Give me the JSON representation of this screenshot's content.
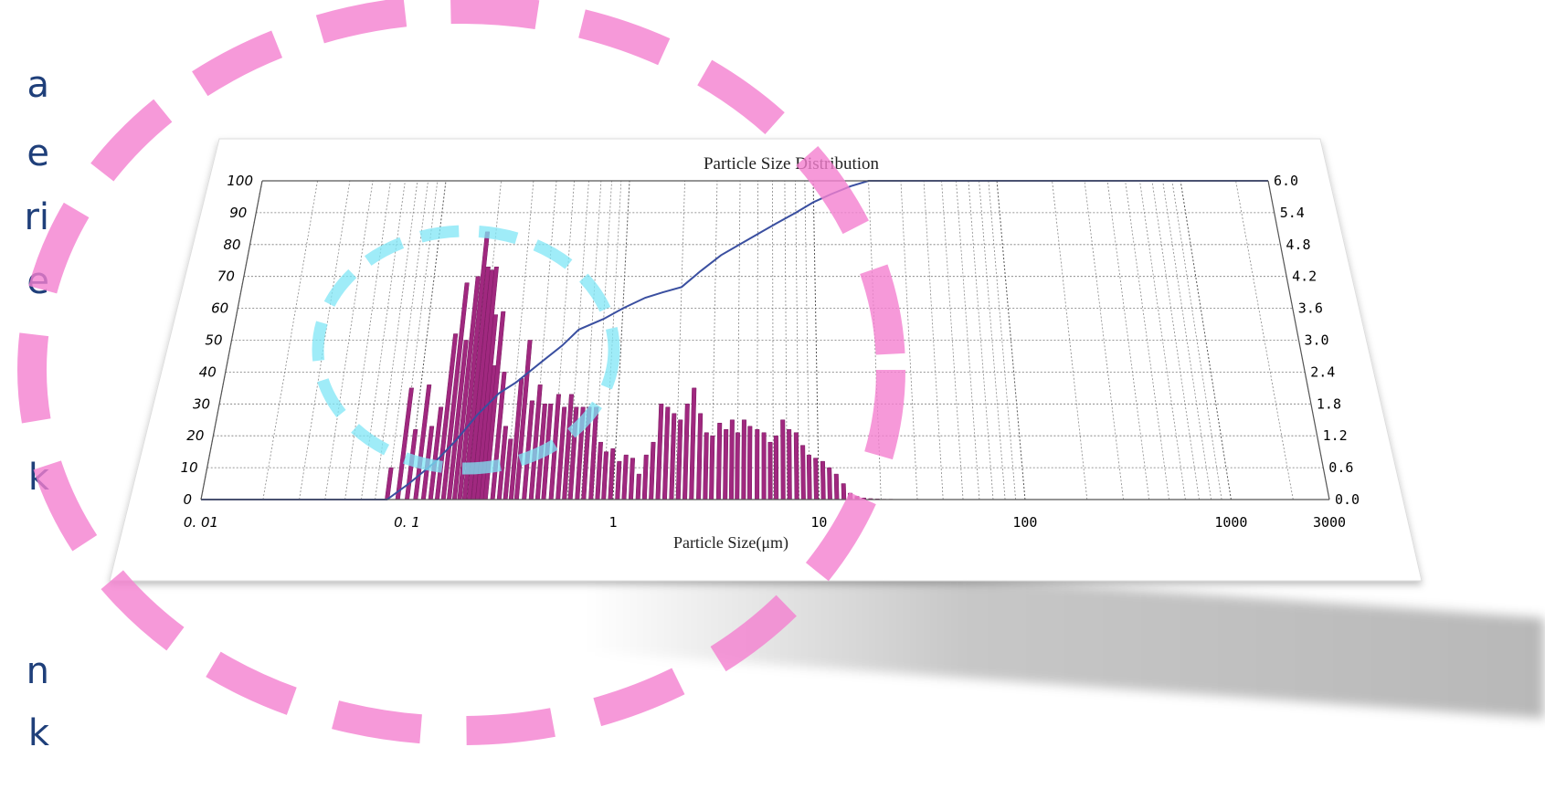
{
  "side_text": [
    "a",
    "e",
    "ri",
    "e",
    "k",
    "n",
    "k"
  ],
  "colors": {
    "bars": "#a0287f",
    "cumulative_line": "#3a4fa0",
    "pink_ring": "#f47fcf",
    "cyan_ring": "#7fe6f5"
  },
  "chart_data": {
    "type": "bar",
    "title": "Particle Size Distribution",
    "xlabel": "Particle Size(μm)",
    "ylabel": "",
    "x_scale": "log",
    "xlim": [
      0.01,
      3000
    ],
    "ylim": [
      0,
      100
    ],
    "ylim_right": [
      0,
      6
    ],
    "x_ticks": [
      "0. 01",
      "0. 1",
      "1",
      "10",
      "100",
      "1000",
      "3000"
    ],
    "x_tick_values": [
      0.01,
      0.1,
      1,
      10,
      100,
      1000,
      3000
    ],
    "y_ticks": [
      "0",
      "10",
      "20",
      "30",
      "40",
      "50",
      "60",
      "70",
      "80",
      "90",
      "100"
    ],
    "y_right_ticks": [
      "0.0",
      "0.6",
      "1.2",
      "1.8",
      "2.4",
      "3.0",
      "3.6",
      "4.2",
      "4.8",
      "5.4",
      "6.0"
    ],
    "grid": true,
    "series": [
      {
        "type": "bar",
        "axis": "left",
        "x": [
          0.08,
          0.09,
          0.1,
          0.11,
          0.12,
          0.13,
          0.14,
          0.15,
          0.16,
          0.17,
          0.18,
          0.19,
          0.2,
          0.21,
          0.22,
          0.23,
          0.24,
          0.26,
          0.28,
          0.3,
          0.32,
          0.34,
          0.37,
          0.4,
          0.43,
          0.46,
          0.5,
          0.54,
          0.58,
          0.62,
          0.67,
          0.72,
          0.78,
          0.84,
          0.9,
          0.97,
          1.05,
          1.13,
          1.22,
          1.32,
          1.42,
          1.53,
          1.65,
          1.78,
          1.92,
          2.07,
          2.23,
          2.4,
          2.6,
          2.8,
          3.0,
          3.25,
          3.5,
          3.75,
          4.0,
          4.3,
          4.6,
          5.0,
          5.4,
          5.8,
          6.2,
          6.7,
          7.2,
          7.8,
          8.4,
          9.0,
          9.7,
          10.5,
          11.3,
          12.2,
          13.2,
          14.2,
          15.3,
          16.5,
          17.8,
          19.2,
          20.7,
          22.3
        ],
        "values": [
          10,
          35,
          22,
          36,
          23,
          29,
          52,
          68,
          50,
          70,
          84,
          73,
          72,
          73,
          58,
          42,
          59,
          40,
          23,
          19,
          38,
          50,
          31,
          36,
          30,
          30,
          33,
          29,
          33,
          29,
          29,
          29,
          29,
          18,
          15,
          16,
          12,
          14,
          13,
          8,
          14,
          18,
          30,
          29,
          27,
          25,
          30,
          35,
          27,
          21,
          20,
          24,
          22,
          25,
          21,
          25,
          23,
          22,
          21,
          18,
          20,
          25,
          22,
          21,
          17,
          14,
          13,
          12,
          10,
          8,
          5,
          2,
          1,
          0.5,
          0.3,
          0.2,
          0.1,
          0.1
        ]
      },
      {
        "type": "line",
        "axis": "right",
        "x": [
          0.01,
          0.08,
          0.1,
          0.13,
          0.16,
          0.2,
          0.25,
          0.3,
          0.4,
          0.5,
          0.6,
          0.8,
          1.0,
          1.3,
          1.6,
          2.0,
          2.5,
          3.2,
          4.0,
          5.0,
          6.3,
          8.0,
          10.0,
          12.5,
          16.0,
          20.0,
          3000
        ],
        "values": [
          0.0,
          0.0,
          0.3,
          0.7,
          1.1,
          1.6,
          2.0,
          2.2,
          2.6,
          2.9,
          3.2,
          3.4,
          3.6,
          3.8,
          3.9,
          4.0,
          4.3,
          4.6,
          4.8,
          5.0,
          5.2,
          5.4,
          5.6,
          5.75,
          5.9,
          6.0,
          6.0
        ]
      }
    ]
  }
}
